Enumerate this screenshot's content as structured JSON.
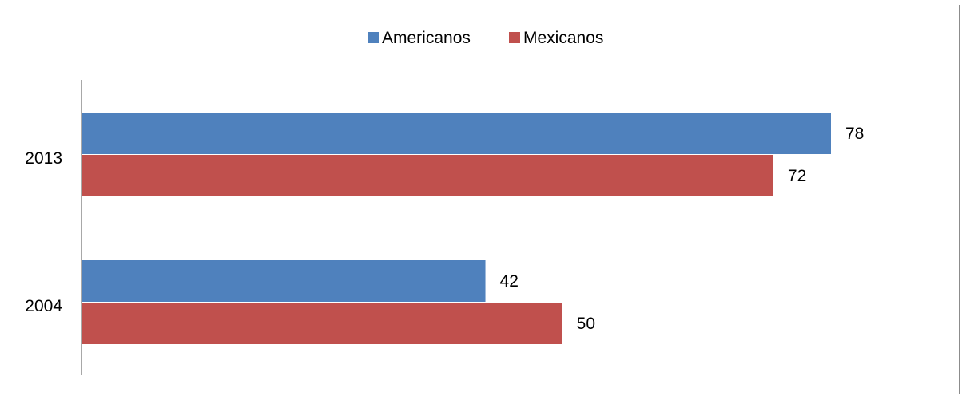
{
  "chart_data": {
    "type": "bar",
    "orientation": "horizontal",
    "categories": [
      "2004",
      "2013"
    ],
    "series": [
      {
        "name": "Americanos",
        "color": "#4f81bd",
        "values": [
          42,
          78
        ]
      },
      {
        "name": "Mexicanos",
        "color": "#c0504d",
        "values": [
          50,
          72
        ]
      }
    ],
    "xlim": [
      0,
      78
    ],
    "grid": false,
    "legend_position": "top"
  }
}
